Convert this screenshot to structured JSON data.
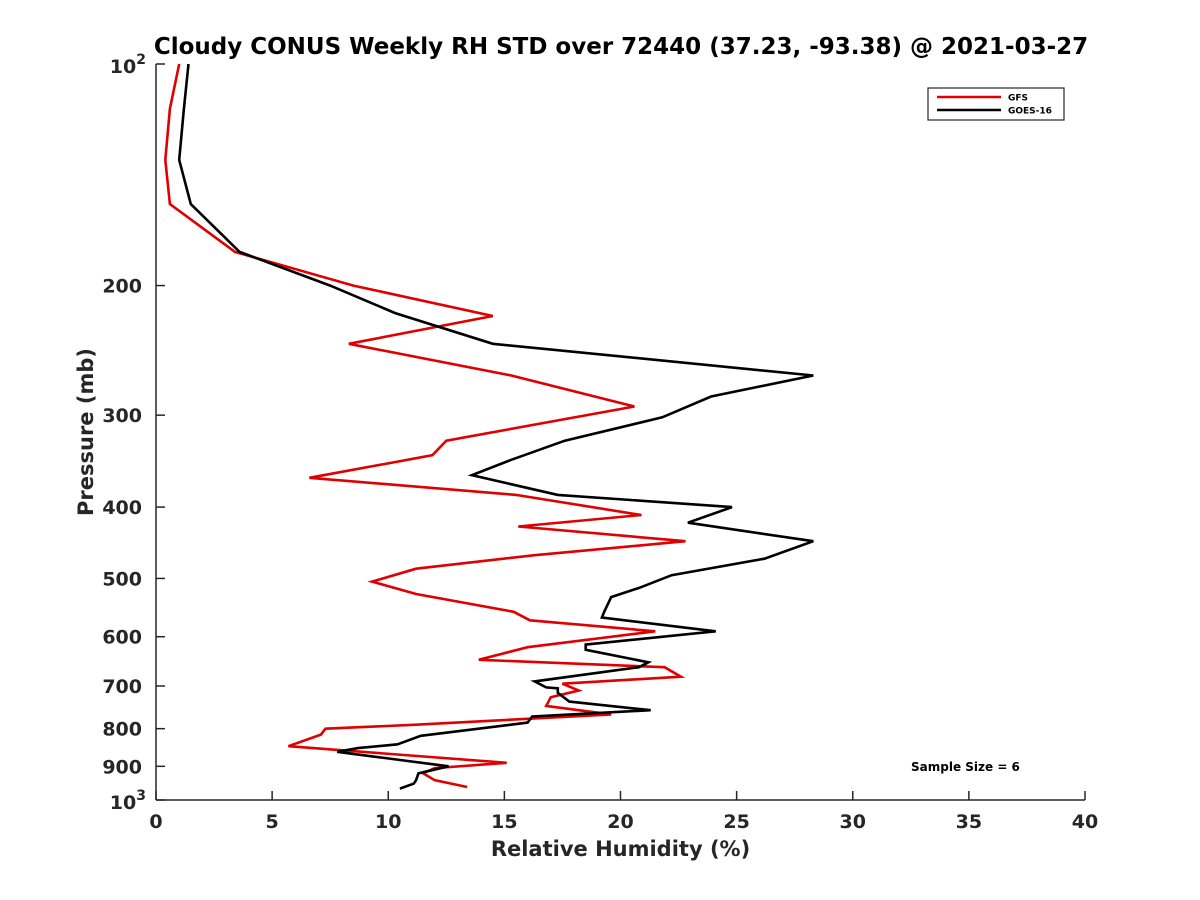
{
  "chart_data": {
    "type": "line",
    "title": "Cloudy CONUS Weekly RH STD over 72440 (37.23, -93.38) @ 2021-03-27",
    "xlabel": "Relative Humidity (%)",
    "ylabel": "Pressure (mb)",
    "xlim": [
      0,
      40
    ],
    "ylim": [
      100,
      1000
    ],
    "yscale": "log",
    "y_reversed": true,
    "grid": false,
    "legend_position": "top-right",
    "xticks": [
      0,
      5,
      10,
      15,
      20,
      25,
      30,
      35,
      40
    ],
    "xtick_labels": [
      "0",
      "5",
      "10",
      "15",
      "20",
      "25",
      "30",
      "35",
      "40"
    ],
    "yticks": [
      200,
      300,
      400,
      500,
      600,
      700,
      800,
      900
    ],
    "ytick_labels": [
      "200",
      "300",
      "400",
      "500",
      "600",
      "700",
      "800",
      "900"
    ],
    "ytick_power_labels": [
      {
        "value": 100,
        "base": "10",
        "exp": "2"
      },
      {
        "value": 1000,
        "base": "10",
        "exp": "3"
      }
    ],
    "annotation": "Sample Size = 6",
    "series": [
      {
        "name": "GFS",
        "color": "#e00000",
        "points": [
          [
            1.0,
            100
          ],
          [
            0.6,
            115
          ],
          [
            0.4,
            135
          ],
          [
            0.6,
            155
          ],
          [
            3.4,
            180
          ],
          [
            8.5,
            200
          ],
          [
            14.5,
            220
          ],
          [
            8.3,
            240
          ],
          [
            15.3,
            265
          ],
          [
            20.6,
            292
          ],
          [
            12.5,
            325
          ],
          [
            11.9,
            340
          ],
          [
            6.6,
            365
          ],
          [
            15.5,
            385
          ],
          [
            20.9,
            410
          ],
          [
            15.6,
            425
          ],
          [
            22.8,
            445
          ],
          [
            16.3,
            465
          ],
          [
            11.2,
            485
          ],
          [
            9.3,
            505
          ],
          [
            11.2,
            525
          ],
          [
            15.4,
            555
          ],
          [
            16.1,
            570
          ],
          [
            21.5,
            590
          ],
          [
            16.0,
            620
          ],
          [
            13.9,
            645
          ],
          [
            21.9,
            660
          ],
          [
            22.6,
            680
          ],
          [
            17.5,
            695
          ],
          [
            18.2,
            710
          ],
          [
            17.0,
            725
          ],
          [
            16.8,
            745
          ],
          [
            19.6,
            765
          ],
          [
            11.2,
            790
          ],
          [
            7.3,
            800
          ],
          [
            7.1,
            815
          ],
          [
            5.7,
            845
          ],
          [
            15.1,
            890
          ],
          [
            12.0,
            905
          ],
          [
            11.5,
            920
          ],
          [
            12.0,
            940
          ],
          [
            13.4,
            960
          ]
        ]
      },
      {
        "name": "GOES-16",
        "color": "#000000",
        "points": [
          [
            1.4,
            100
          ],
          [
            1.2,
            115
          ],
          [
            1.0,
            135
          ],
          [
            1.5,
            155
          ],
          [
            3.6,
            180
          ],
          [
            7.5,
            200
          ],
          [
            10.3,
            218
          ],
          [
            14.5,
            240
          ],
          [
            28.3,
            265
          ],
          [
            23.9,
            283
          ],
          [
            21.8,
            302
          ],
          [
            17.6,
            325
          ],
          [
            15.3,
            345
          ],
          [
            13.6,
            362
          ],
          [
            17.3,
            385
          ],
          [
            24.8,
            400
          ],
          [
            22.9,
            420
          ],
          [
            28.3,
            445
          ],
          [
            26.2,
            470
          ],
          [
            22.2,
            495
          ],
          [
            20.8,
            515
          ],
          [
            19.6,
            530
          ],
          [
            19.3,
            555
          ],
          [
            19.2,
            565
          ],
          [
            24.1,
            590
          ],
          [
            18.5,
            615
          ],
          [
            18.5,
            625
          ],
          [
            21.2,
            650
          ],
          [
            20.8,
            660
          ],
          [
            16.3,
            690
          ],
          [
            16.8,
            703
          ],
          [
            17.3,
            705
          ],
          [
            17.3,
            715
          ],
          [
            17.8,
            735
          ],
          [
            21.3,
            755
          ],
          [
            16.2,
            770
          ],
          [
            16.0,
            785
          ],
          [
            11.4,
            818
          ],
          [
            10.4,
            840
          ],
          [
            8.7,
            850
          ],
          [
            7.8,
            860
          ],
          [
            12.6,
            900
          ],
          [
            11.3,
            920
          ],
          [
            11.2,
            940
          ],
          [
            11.1,
            950
          ],
          [
            10.5,
            965
          ]
        ]
      }
    ]
  }
}
